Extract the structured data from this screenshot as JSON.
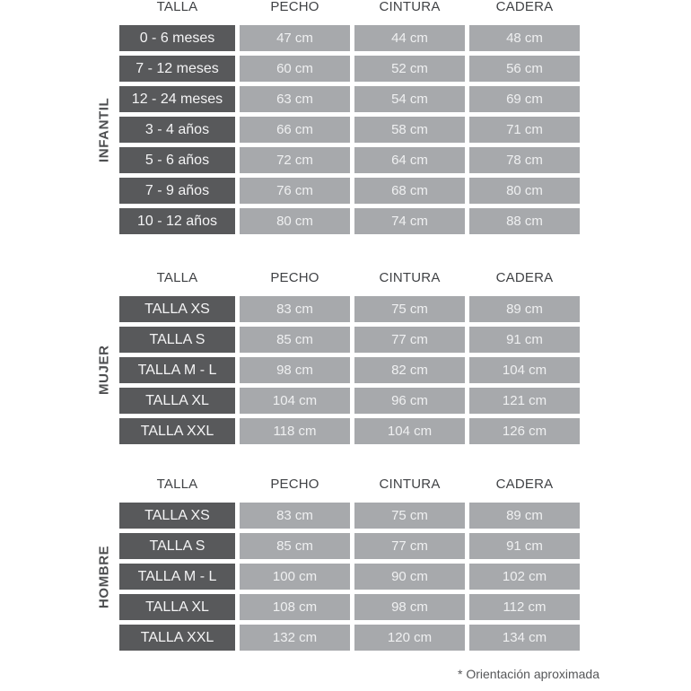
{
  "page": {
    "background": "#ffffff",
    "footnote": "* Orientación aproximada"
  },
  "colors": {
    "label_cell_background": "#58595b",
    "measurement_cell_background": "#a7a9ac",
    "header_text": "#404245",
    "section_label_text": "#4d4e50",
    "cell_text": "#f4f4f5",
    "footnote_text": "#565759"
  },
  "chart_data": [
    {
      "type": "table",
      "category": "INFANTIL",
      "columns": [
        "TALLA",
        "PECHO",
        "CINTURA",
        "CADERA"
      ],
      "rows": [
        [
          "0 - 6 meses",
          "47 cm",
          "44 cm",
          "48 cm"
        ],
        [
          "7 - 12 meses",
          "60 cm",
          "52 cm",
          "56 cm"
        ],
        [
          "12 - 24 meses",
          "63 cm",
          "54 cm",
          "69 cm"
        ],
        [
          "3 - 4 años",
          "66 cm",
          "58 cm",
          "71 cm"
        ],
        [
          "5 - 6 años",
          "72 cm",
          "64 cm",
          "78 cm"
        ],
        [
          "7 - 9 años",
          "76 cm",
          "68 cm",
          "80 cm"
        ],
        [
          "10 - 12 años",
          "80 cm",
          "74 cm",
          "88 cm"
        ]
      ]
    },
    {
      "type": "table",
      "category": "MUJER",
      "columns": [
        "TALLA",
        "PECHO",
        "CINTURA",
        "CADERA"
      ],
      "rows": [
        [
          "TALLA XS",
          "83 cm",
          "75 cm",
          "89 cm"
        ],
        [
          "TALLA S",
          "85 cm",
          "77 cm",
          "91 cm"
        ],
        [
          "TALLA M - L",
          "98 cm",
          "82 cm",
          "104 cm"
        ],
        [
          "TALLA XL",
          "104 cm",
          "96 cm",
          "121 cm"
        ],
        [
          "TALLA XXL",
          "118 cm",
          "104 cm",
          "126 cm"
        ]
      ]
    },
    {
      "type": "table",
      "category": "HOMBRE",
      "columns": [
        "TALLA",
        "PECHO",
        "CINTURA",
        "CADERA"
      ],
      "rows": [
        [
          "TALLA XS",
          "83 cm",
          "75 cm",
          "89 cm"
        ],
        [
          "TALLA S",
          "85 cm",
          "77 cm",
          "91 cm"
        ],
        [
          "TALLA M - L",
          "100 cm",
          "90 cm",
          "102 cm"
        ],
        [
          "TALLA XL",
          "108 cm",
          "98 cm",
          "112 cm"
        ],
        [
          "TALLA XXL",
          "132 cm",
          "120 cm",
          "134 cm"
        ]
      ]
    }
  ]
}
